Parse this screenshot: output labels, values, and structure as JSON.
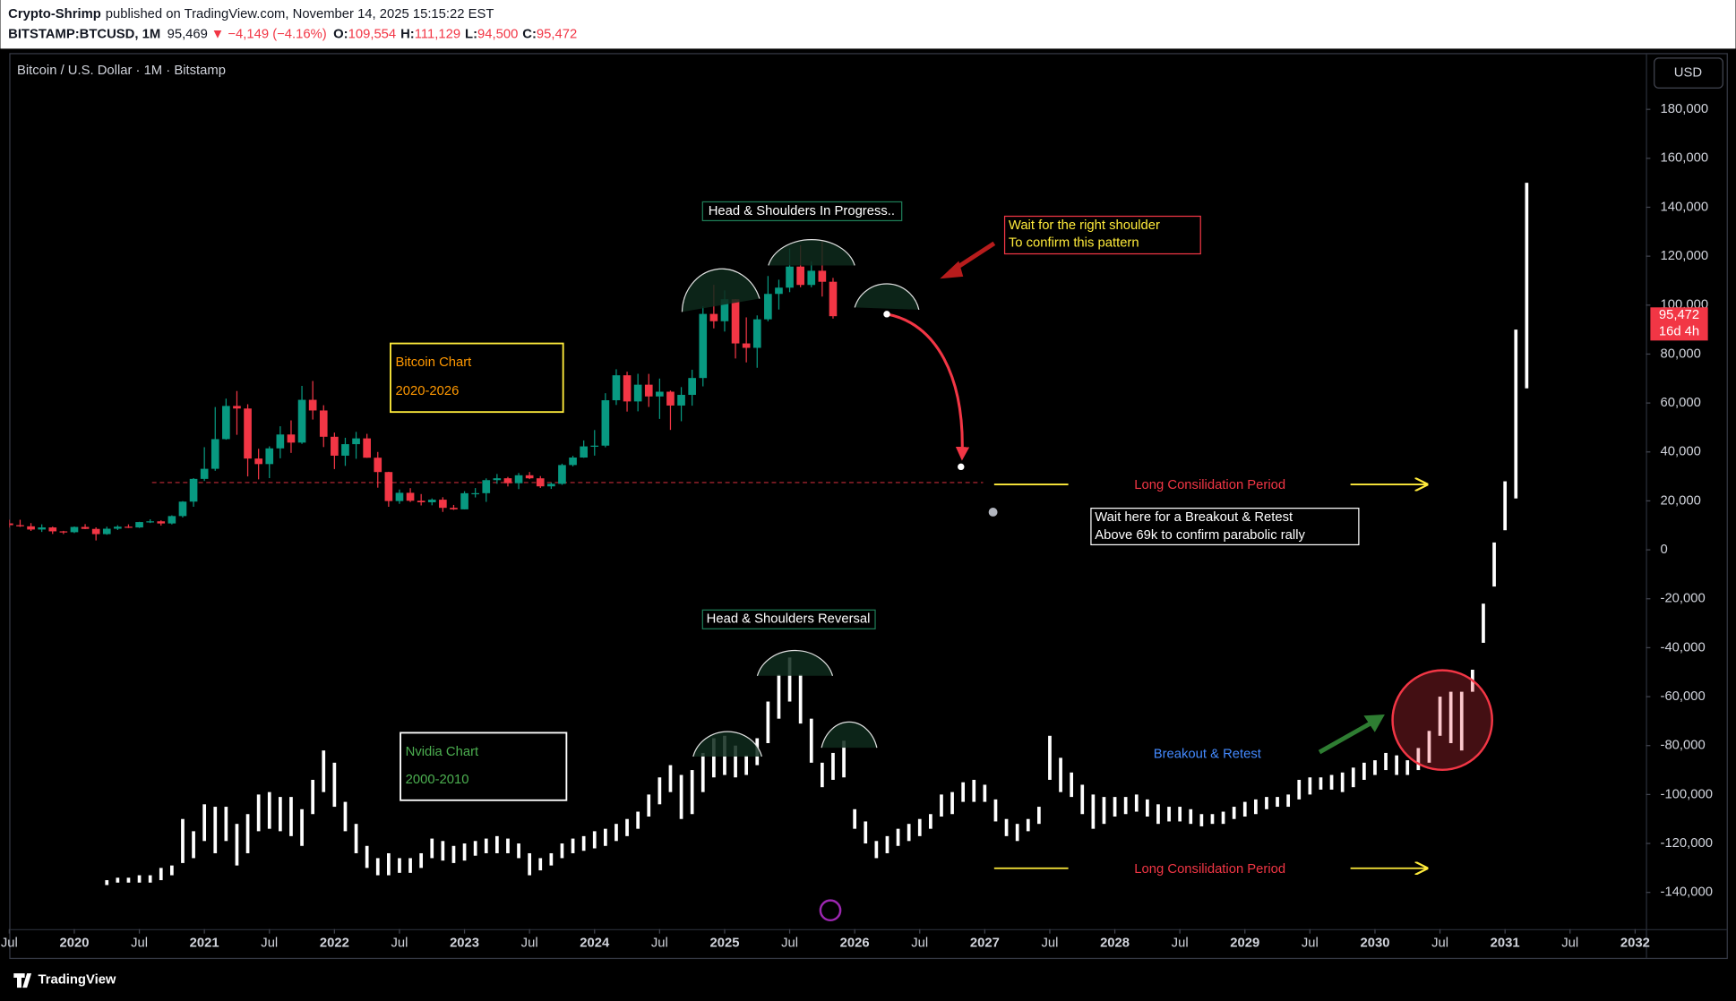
{
  "header": {
    "author": "Crypto-Shrimp",
    "published": "published on TradingView.com, November 14, 2025 15:15:22 EST",
    "symbol": "BITSTAMP:BTCUSD, 1M",
    "price": "95,469",
    "change": "▼ −4,149 (−4.16%)",
    "ohlc": [
      {
        "label": "O:",
        "value": "109,554"
      },
      {
        "label": "H:",
        "value": "111,129"
      },
      {
        "label": "L:",
        "value": "94,500"
      },
      {
        "label": "C:",
        "value": "95,472"
      }
    ]
  },
  "currency_button": "USD",
  "footer": {
    "brand": "TradingView"
  },
  "chart_data": {
    "type": "candlestick",
    "title": "Bitcoin / U.S. Dollar · 1M · Bitstamp",
    "colors": {
      "up": "#089981",
      "down": "#f23645"
    },
    "xlim": [
      "2019-07",
      "2032-02"
    ],
    "xticks": [
      {
        "value": "2019-07",
        "label": "Jul"
      },
      {
        "value": "2020-01",
        "label": "2020"
      },
      {
        "value": "2020-07",
        "label": "Jul"
      },
      {
        "value": "2021-01",
        "label": "2021"
      },
      {
        "value": "2021-07",
        "label": "Jul"
      },
      {
        "value": "2022-01",
        "label": "2022"
      },
      {
        "value": "2022-07",
        "label": "Jul"
      },
      {
        "value": "2023-01",
        "label": "2023"
      },
      {
        "value": "2023-07",
        "label": "Jul"
      },
      {
        "value": "2024-01",
        "label": "2024"
      },
      {
        "value": "2024-07",
        "label": "Jul"
      },
      {
        "value": "2025-01",
        "label": "2025"
      },
      {
        "value": "2025-07",
        "label": "Jul"
      },
      {
        "value": "2026-01",
        "label": "2026"
      },
      {
        "value": "2026-07",
        "label": "Jul"
      },
      {
        "value": "2027-01",
        "label": "2027"
      },
      {
        "value": "2027-07",
        "label": "Jul"
      },
      {
        "value": "2028-01",
        "label": "2028"
      },
      {
        "value": "2028-07",
        "label": "Jul"
      },
      {
        "value": "2029-01",
        "label": "2029"
      },
      {
        "value": "2029-07",
        "label": "Jul"
      },
      {
        "value": "2030-01",
        "label": "2030"
      },
      {
        "value": "2030-07",
        "label": "Jul"
      },
      {
        "value": "2031-01",
        "label": "2031"
      },
      {
        "value": "2031-07",
        "label": "Jul"
      },
      {
        "value": "2032-01",
        "label": "2032"
      }
    ],
    "ylim": [
      -155000,
      203000
    ],
    "yticks": [
      {
        "value": 180000,
        "label": "180,000"
      },
      {
        "value": 160000,
        "label": "160,000"
      },
      {
        "value": 140000,
        "label": "140,000"
      },
      {
        "value": 120000,
        "label": "120,000"
      },
      {
        "value": 100000,
        "label": "100,000"
      },
      {
        "value": 80000,
        "label": "80,000"
      },
      {
        "value": 60000,
        "label": "60,000"
      },
      {
        "value": 40000,
        "label": "40,000"
      },
      {
        "value": 20000,
        "label": "20,000"
      },
      0,
      {
        "value": -20000,
        "label": "-20,000"
      },
      {
        "value": -40000,
        "label": "-40,000"
      },
      {
        "value": -60000,
        "label": "-60,000"
      },
      {
        "value": -80000,
        "label": "-80,000"
      },
      {
        "value": -100000,
        "label": "-100,000"
      },
      {
        "value": -120000,
        "label": "-120,000"
      },
      {
        "value": -140000,
        "label": "-140,000"
      }
    ],
    "x": [
      "2019-07",
      "2019-08",
      "2019-09",
      "2019-10",
      "2019-11",
      "2019-12",
      "2020-01",
      "2020-02",
      "2020-03",
      "2020-04",
      "2020-05",
      "2020-06",
      "2020-07",
      "2020-08",
      "2020-09",
      "2020-10",
      "2020-11",
      "2020-12",
      "2021-01",
      "2021-02",
      "2021-03",
      "2021-04",
      "2021-05",
      "2021-06",
      "2021-07",
      "2021-08",
      "2021-09",
      "2021-10",
      "2021-11",
      "2021-12",
      "2022-01",
      "2022-02",
      "2022-03",
      "2022-04",
      "2022-05",
      "2022-06",
      "2022-07",
      "2022-08",
      "2022-09",
      "2022-10",
      "2022-11",
      "2022-12",
      "2023-01",
      "2023-02",
      "2023-03",
      "2023-04",
      "2023-05",
      "2023-06",
      "2023-07",
      "2023-08",
      "2023-09",
      "2023-10",
      "2023-11",
      "2023-12",
      "2024-01",
      "2024-02",
      "2024-03",
      "2024-04",
      "2024-05",
      "2024-06",
      "2024-07",
      "2024-08",
      "2024-09",
      "2024-10",
      "2024-11",
      "2024-12",
      "2025-01",
      "2025-02",
      "2025-03",
      "2025-04",
      "2025-05",
      "2025-06",
      "2025-07",
      "2025-08",
      "2025-09",
      "2025-10",
      "2025-11"
    ],
    "open": [
      10800,
      10080,
      9600,
      8300,
      9150,
      7550,
      7200,
      9350,
      8550,
      6420,
      8630,
      9450,
      9140,
      11350,
      11650,
      10780,
      13800,
      19700,
      28990,
      33110,
      45240,
      58800,
      57750,
      37300,
      35040,
      41460,
      47130,
      43820,
      61300,
      56950,
      46210,
      38480,
      43180,
      45540,
      37640,
      31790,
      19930,
      23300,
      20050,
      19430,
      20490,
      17160,
      16540,
      23130,
      23150,
      28480,
      29250,
      27220,
      30470,
      29230,
      25940,
      26970,
      34650,
      37720,
      42270,
      42580,
      61130,
      71330,
      60640,
      67490,
      62680,
      64620,
      58970,
      63330,
      70220,
      96410,
      93430,
      102410,
      84350,
      82550,
      94200,
      104590,
      107140,
      115760,
      108250,
      114050,
      109554
    ],
    "high": [
      12300,
      12300,
      10900,
      10400,
      9500,
      7750,
      9550,
      10500,
      9200,
      9450,
      10050,
      10400,
      11450,
      12480,
      12050,
      14100,
      19900,
      29300,
      41950,
      58350,
      61800,
      64900,
      59500,
      41300,
      42300,
      50500,
      52900,
      67000,
      69000,
      59100,
      47900,
      45800,
      48200,
      47400,
      40000,
      31900,
      24650,
      25200,
      22800,
      21000,
      21500,
      18350,
      23950,
      25250,
      29200,
      31000,
      29800,
      31400,
      31800,
      30150,
      27500,
      35200,
      38400,
      44700,
      48950,
      64000,
      73800,
      72800,
      71950,
      71900,
      70000,
      65100,
      66500,
      73600,
      99600,
      108300,
      106000,
      102500,
      95000,
      95800,
      111900,
      110400,
      123200,
      124500,
      117900,
      126200,
      111129
    ],
    "low": [
      9100,
      9350,
      7700,
      7300,
      6500,
      6450,
      6850,
      8450,
      3850,
      6150,
      8100,
      8900,
      8950,
      10950,
      9900,
      10380,
      13200,
      17600,
      28150,
      32300,
      45000,
      47000,
      30000,
      28800,
      29300,
      37400,
      39600,
      43300,
      53250,
      42000,
      33000,
      34300,
      37200,
      37600,
      25400,
      17600,
      18800,
      19550,
      18150,
      18200,
      15500,
      16300,
      16500,
      21400,
      19600,
      27000,
      25900,
      24800,
      28900,
      25300,
      24900,
      26550,
      34100,
      37600,
      38500,
      41900,
      59200,
      56500,
      56600,
      58400,
      53500,
      49000,
      52550,
      58900,
      66800,
      90500,
      89200,
      78200,
      76600,
      74400,
      93400,
      98200,
      105300,
      107300,
      107300,
      103500,
      94500
    ],
    "close": [
      10080,
      9600,
      8300,
      9150,
      7550,
      7200,
      9350,
      8550,
      6420,
      8630,
      9450,
      9140,
      11350,
      11650,
      10780,
      13800,
      19700,
      28990,
      33110,
      45240,
      58800,
      57750,
      37300,
      35040,
      41460,
      47130,
      43820,
      61300,
      56950,
      46210,
      38480,
      43180,
      45540,
      37640,
      31790,
      19930,
      23300,
      20050,
      19430,
      20490,
      17160,
      16540,
      23130,
      23150,
      28480,
      29250,
      27220,
      30470,
      29230,
      25940,
      26970,
      34650,
      37720,
      42270,
      42580,
      61130,
      71330,
      60640,
      67490,
      62680,
      64620,
      58970,
      63330,
      70220,
      96410,
      93430,
      102410,
      84350,
      82550,
      94200,
      104590,
      107140,
      115760,
      108250,
      114050,
      109550,
      95472
    ],
    "last_price": {
      "value": 95472,
      "label": "95,472"
    },
    "countdown": "16d 4h",
    "support_level": 27500,
    "overlay": {
      "type": "range",
      "color": "#ffffff",
      "x": [
        "2020-04",
        "2020-05",
        "2020-06",
        "2020-07",
        "2020-08",
        "2020-09",
        "2020-10",
        "2020-11",
        "2020-12",
        "2021-01",
        "2021-02",
        "2021-03",
        "2021-04",
        "2021-05",
        "2021-06",
        "2021-07",
        "2021-08",
        "2021-09",
        "2021-10",
        "2021-11",
        "2021-12",
        "2022-01",
        "2022-02",
        "2022-03",
        "2022-04",
        "2022-05",
        "2022-06",
        "2022-07",
        "2022-08",
        "2022-09",
        "2022-10",
        "2022-11",
        "2022-12",
        "2023-01",
        "2023-02",
        "2023-03",
        "2023-04",
        "2023-05",
        "2023-06",
        "2023-07",
        "2023-08",
        "2023-09",
        "2023-10",
        "2023-11",
        "2023-12",
        "2024-01",
        "2024-02",
        "2024-03",
        "2024-04",
        "2024-05",
        "2024-06",
        "2024-07",
        "2024-08",
        "2024-09",
        "2024-10",
        "2024-11",
        "2024-12",
        "2025-01",
        "2025-02",
        "2025-03",
        "2025-04",
        "2025-05",
        "2025-06",
        "2025-07",
        "2025-08",
        "2025-09",
        "2025-10",
        "2025-11",
        "2025-12",
        "2026-01",
        "2026-02",
        "2026-03",
        "2026-04",
        "2026-05",
        "2026-06",
        "2026-07",
        "2026-08",
        "2026-09",
        "2026-10",
        "2026-11",
        "2026-12",
        "2027-01",
        "2027-02",
        "2027-03",
        "2027-04",
        "2027-05",
        "2027-06",
        "2027-07",
        "2027-08",
        "2027-09",
        "2027-10",
        "2027-11",
        "2027-12",
        "2028-01",
        "2028-02",
        "2028-03",
        "2028-04",
        "2028-05",
        "2028-06",
        "2028-07",
        "2028-08",
        "2028-09",
        "2028-10",
        "2028-11",
        "2028-12",
        "2029-01",
        "2029-02",
        "2029-03",
        "2029-04",
        "2029-05",
        "2029-06",
        "2029-07",
        "2029-08",
        "2029-09",
        "2029-10",
        "2029-11",
        "2029-12",
        "2030-01",
        "2030-02",
        "2030-03",
        "2030-04",
        "2030-05",
        "2030-06",
        "2030-07",
        "2030-08",
        "2030-09",
        "2030-10",
        "2030-11",
        "2030-12",
        "2031-01",
        "2031-02",
        "2031-03"
      ],
      "high": [
        -135000,
        -134000,
        -134000,
        -133000,
        -133000,
        -130000,
        -129000,
        -110000,
        -115000,
        -104000,
        -105000,
        -105000,
        -112000,
        -108000,
        -100000,
        -99000,
        -101000,
        -101000,
        -106000,
        -94000,
        -82000,
        -87000,
        -103000,
        -112000,
        -121000,
        -126000,
        -124000,
        -126000,
        -126000,
        -124000,
        -118000,
        -119000,
        -121000,
        -120000,
        -119000,
        -118000,
        -117000,
        -118000,
        -120000,
        -124000,
        -126000,
        -124000,
        -120000,
        -118000,
        -117000,
        -115000,
        -114000,
        -112000,
        -110000,
        -107000,
        -100000,
        -93000,
        -88000,
        -92000,
        -90000,
        -83000,
        -77000,
        -76000,
        -80000,
        -84000,
        -77000,
        -62000,
        -51000,
        -44000,
        -51000,
        -69000,
        -87000,
        -83000,
        -78000,
        -106000,
        -111000,
        -119000,
        -117000,
        -114000,
        -112000,
        -110000,
        -108000,
        -100000,
        -99000,
        -95000,
        -94000,
        -96000,
        -102000,
        -110000,
        -112000,
        -110000,
        -105000,
        -76000,
        -85000,
        -91000,
        -96000,
        -100000,
        -101000,
        -101000,
        -101000,
        -100000,
        -102000,
        -104000,
        -105000,
        -105000,
        -106000,
        -108000,
        -108000,
        -107000,
        -105000,
        -103000,
        -102000,
        -101000,
        -101000,
        -100000,
        -94000,
        -93000,
        -93000,
        -92000,
        -91000,
        -89000,
        -87000,
        -86000,
        -83000,
        -84000,
        -86000,
        -81000,
        -74000,
        -60000,
        -58000,
        -58000,
        -49000,
        -22000,
        3000,
        28000,
        90000,
        150000
      ],
      "low": [
        -137000,
        -136000,
        -136000,
        -136000,
        -136000,
        -135000,
        -133000,
        -128000,
        -126000,
        -119000,
        -124000,
        -119000,
        -129000,
        -124000,
        -115000,
        -114000,
        -115000,
        -117000,
        -121000,
        -108000,
        -99000,
        -105000,
        -115000,
        -124000,
        -130000,
        -133000,
        -133000,
        -132000,
        -132000,
        -130000,
        -126000,
        -127000,
        -128000,
        -127000,
        -125000,
        -124000,
        -124000,
        -124000,
        -126000,
        -133000,
        -131000,
        -129000,
        -126000,
        -124000,
        -123000,
        -122000,
        -121000,
        -119000,
        -117000,
        -114000,
        -109000,
        -104000,
        -99000,
        -110000,
        -108000,
        -99000,
        -93000,
        -92000,
        -93000,
        -92000,
        -88000,
        -79000,
        -69000,
        -62000,
        -71000,
        -87000,
        -97000,
        -94000,
        -93000,
        -114000,
        -120000,
        -126000,
        -124000,
        -121000,
        -119000,
        -117000,
        -114000,
        -109000,
        -108000,
        -103000,
        -103000,
        -103000,
        -111000,
        -117000,
        -119000,
        -115000,
        -112000,
        -94000,
        -99000,
        -101000,
        -108000,
        -114000,
        -112000,
        -109000,
        -108000,
        -107000,
        -109000,
        -112000,
        -111000,
        -111000,
        -112000,
        -113000,
        -112000,
        -112000,
        -110000,
        -109000,
        -108000,
        -106000,
        -105000,
        -105000,
        -102000,
        -100000,
        -98000,
        -98000,
        -99000,
        -97000,
        -94000,
        -92000,
        -90000,
        -92000,
        -92000,
        -90000,
        -87000,
        -76000,
        -79000,
        -82000,
        -58000,
        -38000,
        -15000,
        8000,
        21000,
        66000
      ]
    },
    "annotations": [
      {
        "text": "Head & Shoulders In Progress.."
      },
      {
        "lines": [
          "Wait for the right shoulder",
          "To confirm this pattern"
        ]
      },
      {
        "lines": [
          "Bitcoin Chart",
          "2020-2026"
        ]
      },
      {
        "text": "Long Consilidation Period"
      },
      {
        "lines": [
          "Wait here for a Breakout & Retest",
          "Above 69k to confirm parabolic rally"
        ]
      },
      {
        "text": "Head & Shoulders Reversal"
      },
      {
        "lines": [
          "Nvidia Chart",
          "2000-2010"
        ]
      },
      {
        "text": "Breakout & Retest"
      },
      {
        "text": "Long Consilidation Period"
      }
    ]
  }
}
